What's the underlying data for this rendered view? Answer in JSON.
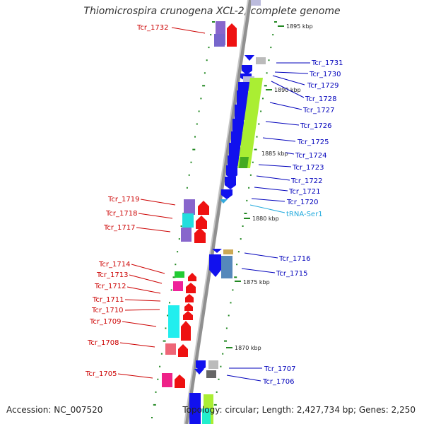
{
  "title": "Thiomicrospira crunogena XCL-2, complete genome",
  "accession": "Accession: NC_007520",
  "topology": "Topology: circular; Length: 2,427,734 bp; Genes: 2,250",
  "scale_labels": [
    "1895 kbp",
    "1890 kbp",
    "1885 kbp",
    "1880 kbp",
    "1875 kbp",
    "1870 kbp"
  ],
  "left_labels": [
    "Tcr_1732",
    "Tcr_1719",
    "Tcr_1718",
    "Tcr_1717",
    "Tcr_1714",
    "Tcr_1713",
    "Tcr_1712",
    "Tcr_1711",
    "Tcr_1710",
    "Tcr_1709",
    "Tcr_1708",
    "Tcr_1705"
  ],
  "right_labels": [
    "Tcr_1731",
    "Tcr_1730",
    "Tcr_1729",
    "Tcr_1728",
    "Tcr_1727",
    "Tcr_1726",
    "Tcr_1725",
    "Tcr_1724",
    "Tcr_1723",
    "Tcr_1722",
    "Tcr_1721",
    "Tcr_1720",
    "tRNA-Ser1",
    "Tcr_1716",
    "Tcr_1715",
    "Tcr_1707",
    "Tcr_1706"
  ],
  "colors": {
    "forward": "#ee1111",
    "reverse": "#1111ee",
    "trna": "#33aadd",
    "backbone": "#888888",
    "tick": "#228822"
  }
}
